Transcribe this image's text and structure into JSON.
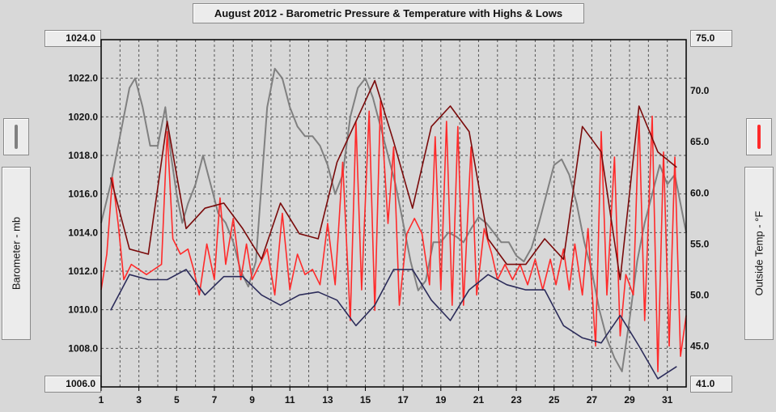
{
  "chart_data": {
    "type": "line",
    "title": "August 2012 - Barometric Pressure & Temperature with Highs & Lows",
    "xlabel": "",
    "y1label": "Barometer - mb",
    "y2label": "Outside Temp - °F",
    "xlim": [
      1,
      32
    ],
    "y1lim": [
      1006.0,
      1024.0
    ],
    "y2lim": [
      41.0,
      75.0
    ],
    "grid": true,
    "x_ticks": [
      "1",
      "3",
      "5",
      "7",
      "9",
      "11",
      "13",
      "15",
      "17",
      "19",
      "21",
      "23",
      "25",
      "27",
      "29",
      "31"
    ],
    "y1_ticks": [
      "1008.0",
      "1010.0",
      "1012.0",
      "1014.0",
      "1016.0",
      "1018.0",
      "1020.0",
      "1022.0"
    ],
    "y1_min_label": "1006.0",
    "y1_max_label": "1024.0",
    "y2_ticks": [
      "45.0",
      "50.0",
      "55.0",
      "60.0",
      "65.0",
      "70.0"
    ],
    "y2_min_label": "41.0",
    "y2_max_label": "75.0",
    "series": [
      {
        "name": "Barometer",
        "axis": "left",
        "color": "#808080",
        "x": [
          1.0,
          1.5,
          2.0,
          2.5,
          2.8,
          3.2,
          3.6,
          4.0,
          4.4,
          4.7,
          5.0,
          5.3,
          5.6,
          6.0,
          6.4,
          6.8,
          7.2,
          7.6,
          8.0,
          8.4,
          8.8,
          9.2,
          9.5,
          9.8,
          10.2,
          10.6,
          11.0,
          11.4,
          11.8,
          12.2,
          12.6,
          13.0,
          13.4,
          13.8,
          14.2,
          14.6,
          15.0,
          15.4,
          15.8,
          16.2,
          16.6,
          17.0,
          17.4,
          17.8,
          18.2,
          18.6,
          19.0,
          19.4,
          19.8,
          20.2,
          20.6,
          21.0,
          21.4,
          21.8,
          22.2,
          22.6,
          23.0,
          23.4,
          23.8,
          24.2,
          24.6,
          25.0,
          25.4,
          25.8,
          26.2,
          26.6,
          27.0,
          27.4,
          27.8,
          28.2,
          28.6,
          29.0,
          29.4,
          29.8,
          30.2,
          30.6,
          31.0,
          31.4,
          31.8,
          32.0
        ],
        "values": [
          1014.5,
          1016.5,
          1019.0,
          1021.5,
          1022.0,
          1020.5,
          1018.5,
          1018.5,
          1020.5,
          1018.0,
          1016.0,
          1014.5,
          1015.5,
          1016.5,
          1018.0,
          1016.5,
          1015.0,
          1014.5,
          1013.5,
          1012.0,
          1011.2,
          1012.5,
          1016.5,
          1020.5,
          1022.5,
          1022.0,
          1020.5,
          1019.5,
          1019.0,
          1019.0,
          1018.5,
          1017.5,
          1016.0,
          1017.0,
          1020.0,
          1021.5,
          1022.0,
          1021.0,
          1019.5,
          1018.0,
          1016.5,
          1014.5,
          1012.5,
          1011.0,
          1011.5,
          1013.5,
          1013.5,
          1014.0,
          1013.8,
          1013.5,
          1014.2,
          1014.8,
          1014.5,
          1014.0,
          1013.5,
          1013.5,
          1012.8,
          1012.5,
          1013.2,
          1014.5,
          1016.0,
          1017.5,
          1017.8,
          1017.0,
          1015.5,
          1013.5,
          1012.0,
          1010.0,
          1008.5,
          1007.5,
          1006.8,
          1009.5,
          1012.5,
          1014.5,
          1016.0,
          1017.5,
          1016.5,
          1017.0,
          1015.0,
          1014.0
        ]
      },
      {
        "name": "Outside Temp",
        "axis": "right",
        "color": "#ff2a2a",
        "x": [
          1.0,
          1.3,
          1.6,
          1.9,
          2.2,
          2.6,
          3.0,
          3.4,
          3.8,
          4.2,
          4.5,
          4.8,
          5.2,
          5.6,
          5.9,
          6.2,
          6.6,
          7.0,
          7.3,
          7.6,
          8.0,
          8.4,
          8.7,
          9.0,
          9.4,
          9.8,
          10.2,
          10.6,
          11.0,
          11.4,
          11.8,
          12.2,
          12.6,
          13.0,
          13.4,
          13.8,
          14.2,
          14.5,
          14.8,
          15.2,
          15.5,
          15.8,
          16.2,
          16.5,
          16.8,
          17.2,
          17.6,
          18.0,
          18.4,
          18.7,
          19.0,
          19.3,
          19.6,
          19.9,
          20.2,
          20.6,
          20.9,
          21.3,
          21.7,
          22.0,
          22.4,
          22.8,
          23.2,
          23.6,
          24.0,
          24.4,
          24.8,
          25.1,
          25.5,
          25.8,
          26.1,
          26.5,
          26.8,
          27.2,
          27.5,
          27.8,
          28.2,
          28.5,
          28.8,
          29.2,
          29.5,
          29.8,
          30.2,
          30.5,
          30.8,
          31.1,
          31.4,
          31.7,
          32.0
        ],
        "values": [
          50.5,
          54.0,
          61.5,
          57.0,
          51.5,
          53.0,
          52.5,
          52.0,
          52.5,
          53.0,
          66.0,
          55.5,
          54.0,
          54.5,
          52.5,
          50.0,
          55.0,
          51.5,
          59.5,
          53.0,
          57.5,
          51.5,
          55.0,
          51.5,
          53.0,
          54.5,
          50.0,
          58.0,
          50.5,
          54.0,
          52.0,
          52.5,
          51.0,
          57.0,
          51.0,
          63.0,
          47.5,
          67.0,
          50.5,
          68.0,
          48.5,
          69.0,
          57.0,
          64.5,
          49.0,
          56.0,
          57.5,
          56.0,
          51.0,
          65.5,
          50.5,
          67.0,
          49.0,
          66.5,
          49.0,
          64.5,
          50.0,
          56.5,
          54.0,
          51.5,
          53.0,
          51.5,
          53.0,
          51.0,
          53.5,
          50.5,
          53.5,
          51.0,
          54.5,
          50.5,
          55.0,
          50.0,
          56.5,
          45.0,
          66.0,
          50.0,
          63.5,
          46.0,
          52.0,
          50.0,
          67.5,
          47.5,
          67.5,
          42.5,
          64.0,
          45.0,
          63.5,
          44.0,
          48.0
        ]
      },
      {
        "name": "Temp Highs",
        "axis": "right",
        "color": "#7a0a0a",
        "x": [
          1.5,
          2.5,
          3.5,
          4.5,
          5.5,
          6.5,
          7.5,
          8.5,
          9.5,
          10.5,
          11.5,
          12.5,
          13.5,
          14.5,
          15.5,
          16.5,
          17.5,
          18.5,
          19.5,
          20.5,
          21.5,
          22.5,
          23.5,
          24.5,
          25.5,
          26.5,
          27.5,
          28.5,
          29.5,
          30.5,
          31.5
        ],
        "values": [
          61.5,
          54.5,
          54.0,
          67.0,
          56.5,
          58.5,
          59.0,
          56.5,
          53.5,
          59.0,
          56.0,
          55.5,
          63.0,
          67.0,
          71.0,
          65.0,
          58.5,
          66.5,
          68.5,
          66.0,
          55.5,
          53.0,
          53.0,
          55.5,
          53.5,
          66.5,
          64.0,
          51.5,
          68.5,
          64.0,
          62.5
        ]
      },
      {
        "name": "Temp Lows",
        "axis": "right",
        "color": "#2c2c5a",
        "x": [
          1.5,
          2.5,
          3.5,
          4.5,
          5.5,
          6.5,
          7.5,
          8.5,
          9.5,
          10.5,
          11.5,
          12.5,
          13.5,
          14.5,
          15.5,
          16.5,
          17.5,
          18.5,
          19.5,
          20.5,
          21.5,
          22.5,
          23.5,
          24.5,
          25.5,
          26.5,
          27.5,
          28.5,
          29.5,
          30.5,
          31.5
        ],
        "values": [
          48.5,
          52.0,
          51.5,
          51.5,
          52.5,
          50.0,
          51.8,
          51.8,
          50.0,
          49.0,
          50.0,
          50.3,
          49.5,
          47.0,
          49.0,
          52.5,
          52.5,
          49.5,
          47.5,
          50.5,
          52.0,
          51.0,
          50.5,
          50.5,
          47.0,
          45.8,
          45.3,
          48.0,
          45.0,
          41.8,
          43.0
        ]
      }
    ]
  },
  "legend": {
    "barometer_color": "#808080",
    "temp_color": "#ff2a2a"
  }
}
